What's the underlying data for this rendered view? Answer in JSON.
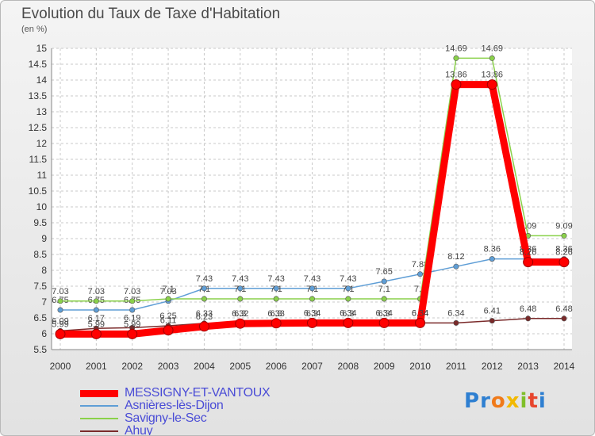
{
  "chart_data": {
    "type": "line",
    "title": "Evolution du Taux de Taxe d'Habitation",
    "subtitle": "(en %)",
    "x": [
      "2000",
      "2001",
      "2002",
      "2003",
      "2004",
      "2005",
      "2006",
      "2007",
      "2008",
      "2009",
      "2010",
      "2011",
      "2012",
      "2013",
      "2014"
    ],
    "yticks": [
      "5.5",
      "6",
      "6.5",
      "7",
      "7.5",
      "8",
      "8.5",
      "9",
      "9.5",
      "10",
      "10.5",
      "11",
      "11.5",
      "12",
      "12.5",
      "13",
      "13.5",
      "14",
      "14.5",
      "15"
    ],
    "ylim": [
      5.5,
      15
    ],
    "grid": true,
    "legend_position": "bottom-left",
    "series": [
      {
        "name": "MESSIGNY-ET-VANTOUX",
        "color": "#ff0000",
        "values": [
          5.99,
          5.99,
          5.99,
          6.11,
          6.23,
          6.32,
          6.33,
          6.34,
          6.34,
          6.34,
          6.34,
          13.86,
          13.86,
          8.26,
          8.26
        ],
        "labels": [
          "5.99",
          "5.99",
          "5.99",
          "6.11",
          "6.23",
          "6.32",
          "6.33",
          "6.34",
          "6.34",
          "6.34",
          "6.34",
          "13.86",
          "13.86",
          "8.26",
          "8.26"
        ]
      },
      {
        "name": "Asnières-lès-Dijon",
        "color": "#5f9ed6",
        "values": [
          6.75,
          6.75,
          6.75,
          7.03,
          7.43,
          7.43,
          7.43,
          7.43,
          7.43,
          7.65,
          7.88,
          8.12,
          8.36,
          8.36,
          8.36
        ],
        "labels": [
          "6.75",
          "6.75",
          "6.75",
          "7.03",
          "7.43",
          "7.43",
          "7.43",
          "7.43",
          "7.43",
          "7.65",
          "7.88",
          "8.12",
          "8.36",
          "8.36",
          "8.36"
        ]
      },
      {
        "name": "Savigny-le-Sec",
        "color": "#8ad14a",
        "values": [
          7.03,
          7.03,
          7.03,
          7.1,
          7.1,
          7.1,
          7.1,
          7.1,
          7.1,
          7.1,
          7.1,
          14.69,
          14.69,
          9.09,
          9.09
        ],
        "labels": [
          "7.03",
          "7.03",
          "7.03",
          "7.1",
          "7.1",
          "7.1",
          "7.1",
          "7.1",
          "7.1",
          "7.1",
          "7.1",
          "14.69",
          "14.69",
          "9.09",
          "9.09"
        ]
      },
      {
        "name": "Ahuy",
        "color": "#7a2a2a",
        "values": [
          6.09,
          6.17,
          6.19,
          6.25,
          6.33,
          6.33,
          6.33,
          6.33,
          6.33,
          6.33,
          6.34,
          6.34,
          6.41,
          6.48,
          6.48
        ],
        "labels": [
          "6.09",
          "6.17",
          "6.19",
          "6.25",
          "6.33",
          "6.3",
          "6.3",
          "6.3",
          "6.3",
          "6.3",
          "6.34",
          "6.34",
          "6.41",
          "6.48",
          "6.48"
        ]
      }
    ]
  },
  "logo": {
    "letters": [
      "P",
      "r",
      "o",
      "x",
      "i",
      "t",
      "i"
    ],
    "colors": [
      "#2e7fd1",
      "#2e7fd1",
      "#f07a1a",
      "#f2b900",
      "#7fbf2a",
      "#e7452d",
      "#2e7fd1"
    ]
  }
}
